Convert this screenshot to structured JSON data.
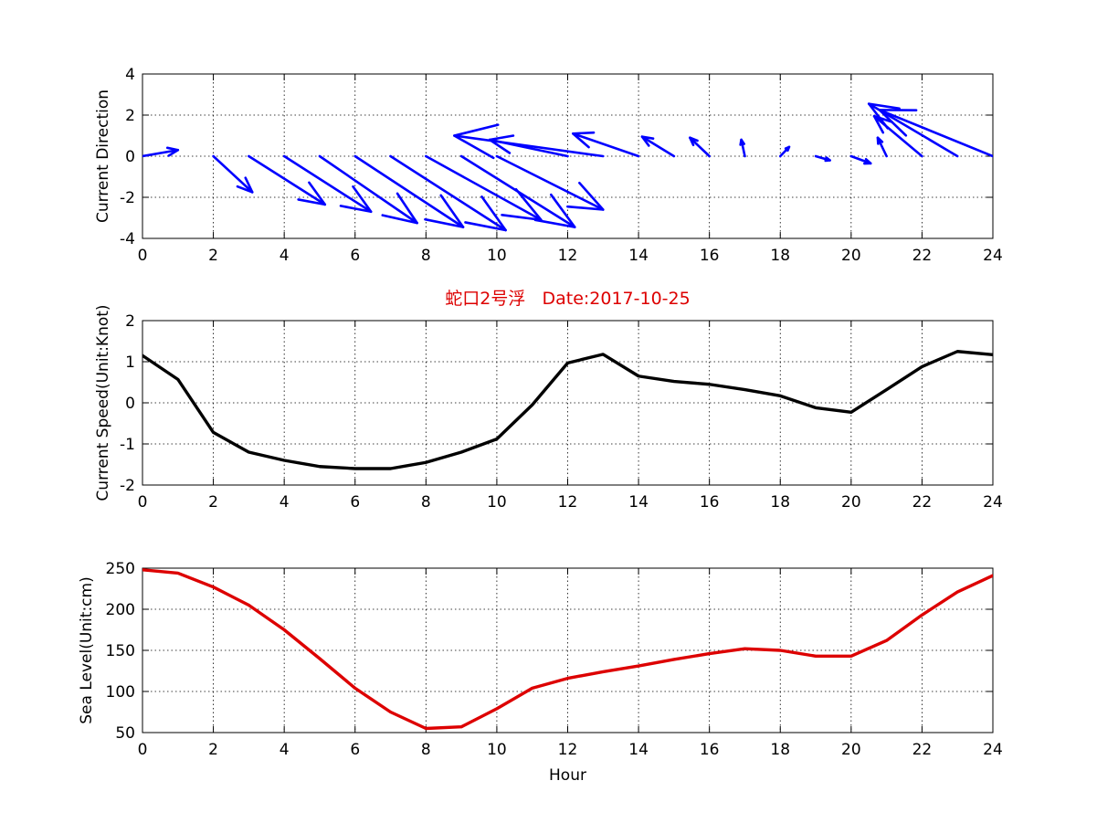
{
  "chart_data": [
    {
      "type": "quiver",
      "title": "",
      "xlabel": "",
      "ylabel": "Current Direction",
      "xlim": [
        0,
        24
      ],
      "ylim": [
        -4,
        4
      ],
      "xticks": [
        0,
        2,
        4,
        6,
        8,
        10,
        12,
        14,
        16,
        18,
        20,
        22,
        24
      ],
      "yticks": [
        -4,
        -2,
        0,
        2,
        4
      ],
      "grid": true,
      "color": "#0000ff",
      "x": [
        0,
        1,
        2,
        3,
        4,
        5,
        6,
        7,
        8,
        9,
        10,
        11,
        12,
        13,
        14,
        15,
        16,
        17,
        18,
        19,
        20,
        21,
        22,
        23,
        24
      ],
      "u": [
        1.0,
        0,
        1.1,
        2.15,
        2.45,
        2.75,
        3.05,
        3.25,
        3.25,
        3.2,
        3.0,
        0,
        -2.2,
        -4.2,
        -1.85,
        -0.9,
        -0.55,
        -0.1,
        0.25,
        0.4,
        0.55,
        -0.25,
        -1.35,
        -2.5,
        -3.2
      ],
      "v": [
        0.3,
        0,
        -1.75,
        -2.35,
        -2.7,
        -3.25,
        -3.45,
        -3.6,
        -3.1,
        -3.45,
        -2.6,
        0,
        0.8,
        1.0,
        1.1,
        0.95,
        0.9,
        0.8,
        0.45,
        -0.2,
        -0.35,
        0.9,
        1.95,
        2.55,
        2.25
      ]
    },
    {
      "type": "line",
      "title": "蛇口2号浮   Date:2017-10-25",
      "xlabel": "",
      "ylabel": "Current Speed(Unit:Knot)",
      "xlim": [
        0,
        24
      ],
      "ylim": [
        -2,
        2
      ],
      "xticks": [
        0,
        2,
        4,
        6,
        8,
        10,
        12,
        14,
        16,
        18,
        20,
        22,
        24
      ],
      "yticks": [
        -2,
        -1,
        0,
        1,
        2
      ],
      "grid": true,
      "color": "#000000",
      "title_color": "#dd0000",
      "x": [
        0,
        1,
        2,
        3,
        4,
        5,
        6,
        7,
        8,
        9,
        10,
        11,
        12,
        13,
        14,
        15,
        16,
        17,
        18,
        19,
        20,
        21,
        22,
        23,
        24
      ],
      "y": [
        1.15,
        0.57,
        -0.72,
        -1.2,
        -1.4,
        -1.55,
        -1.6,
        -1.6,
        -1.45,
        -1.2,
        -0.88,
        -0.05,
        0.97,
        1.18,
        0.65,
        0.52,
        0.45,
        0.32,
        0.17,
        -0.12,
        -0.23,
        0.32,
        0.88,
        1.25,
        1.17
      ]
    },
    {
      "type": "line",
      "title": "",
      "xlabel": "Hour",
      "ylabel": "Sea Level(Unit:cm)",
      "xlim": [
        0,
        24
      ],
      "ylim": [
        50,
        250
      ],
      "xticks": [
        0,
        2,
        4,
        6,
        8,
        10,
        12,
        14,
        16,
        18,
        20,
        22,
        24
      ],
      "yticks": [
        50,
        100,
        150,
        200,
        250
      ],
      "grid": true,
      "color": "#dd0000",
      "x": [
        0,
        1,
        2,
        3,
        4,
        5,
        6,
        7,
        8,
        9,
        10,
        11,
        12,
        13,
        14,
        15,
        16,
        17,
        18,
        19,
        20,
        21,
        22,
        23,
        24
      ],
      "y": [
        248,
        244,
        227,
        205,
        175,
        140,
        104,
        75,
        55,
        57,
        79,
        104,
        116,
        124,
        131,
        139,
        146,
        152,
        150,
        143,
        143,
        162,
        193,
        221,
        241
      ]
    }
  ]
}
